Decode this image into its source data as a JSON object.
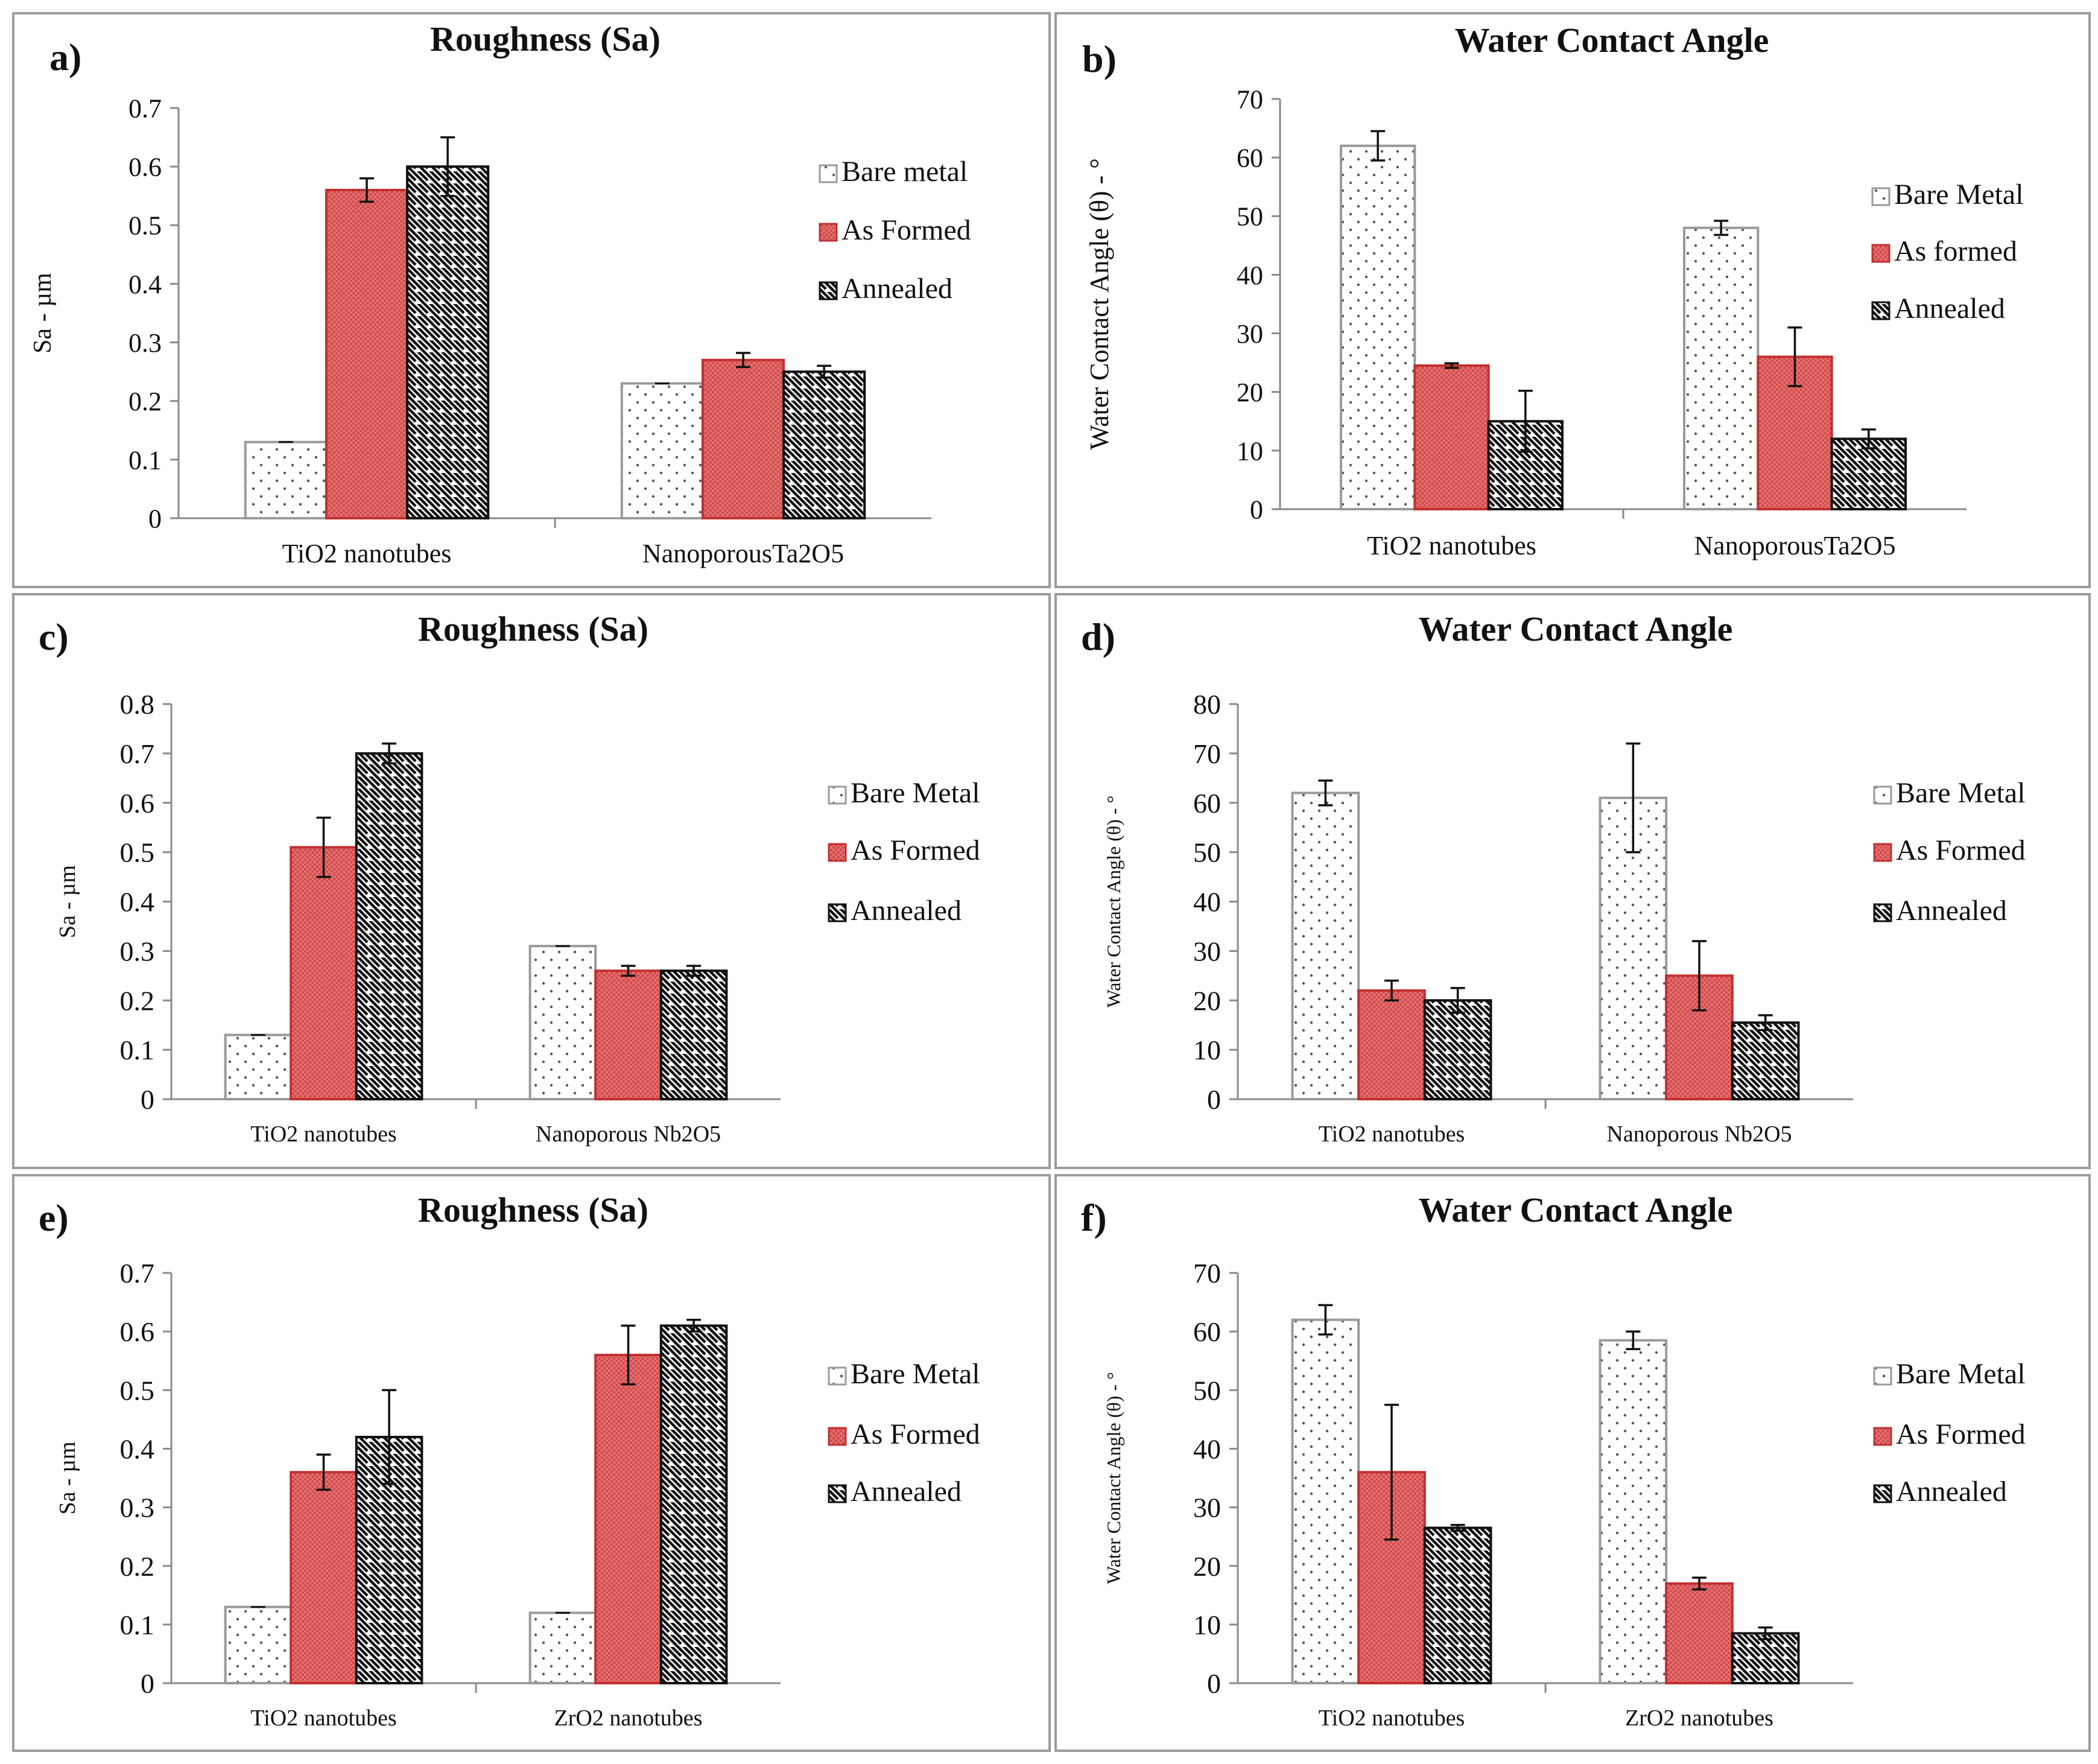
{
  "figure": {
    "colors": {
      "bare": "#ffffff",
      "formed": "#e06060",
      "formed_hatch": "#c03a3a",
      "annealed": "#ffffff",
      "axis": "#8a8a8a"
    }
  },
  "chart_data": [
    {
      "id": "a",
      "panel_label": "a)",
      "type": "bar",
      "title": "Roughness (Sa)",
      "ylabel": "Sa - µm",
      "xlabel": "",
      "ylim": [
        0,
        0.7
      ],
      "yticks": [
        "0",
        "0.1",
        "0.2",
        "0.3",
        "0.4",
        "0.5",
        "0.6",
        "0.7"
      ],
      "categories": [
        "TiO2 nanotubes",
        "NanoporousTa2O5"
      ],
      "series": [
        {
          "name": "Bare metal",
          "pattern": "bare",
          "values": [
            0.13,
            0.23
          ],
          "errors": [
            0,
            0
          ]
        },
        {
          "name": "As Formed",
          "pattern": "formed",
          "values": [
            0.56,
            0.27
          ],
          "errors": [
            0.02,
            0.012
          ]
        },
        {
          "name": "Annealed",
          "pattern": "annealed",
          "values": [
            0.6,
            0.25
          ],
          "errors": [
            0.05,
            0.01
          ]
        }
      ]
    },
    {
      "id": "b",
      "panel_label": "b)",
      "type": "bar",
      "title": "Water Contact Angle",
      "ylabel": "Water Contact Angle (θ) - °",
      "xlabel": "",
      "ylim": [
        0,
        70
      ],
      "yticks": [
        "0",
        "10",
        "20",
        "30",
        "40",
        "50",
        "60",
        "70"
      ],
      "categories": [
        "TiO2 nanotubes",
        "NanoporousTa2O5"
      ],
      "series": [
        {
          "name": "Bare Metal",
          "pattern": "bare",
          "values": [
            62,
            48
          ],
          "errors": [
            2.5,
            1.2
          ]
        },
        {
          "name": "As formed",
          "pattern": "formed",
          "values": [
            24.5,
            26
          ],
          "errors": [
            0.4,
            5
          ]
        },
        {
          "name": "Annealed",
          "pattern": "annealed",
          "values": [
            15,
            12
          ],
          "errors": [
            5.2,
            1.6
          ]
        }
      ]
    },
    {
      "id": "c",
      "panel_label": "c)",
      "type": "bar",
      "title": "Roughness (Sa)",
      "ylabel": "Sa - µm",
      "xlabel": "",
      "ylim": [
        0,
        0.8
      ],
      "yticks": [
        "0",
        "0.1",
        "0.2",
        "0.3",
        "0.4",
        "0.5",
        "0.6",
        "0.7",
        "0.8"
      ],
      "categories": [
        "TiO2 nanotubes",
        "Nanoporous Nb2O5"
      ],
      "series": [
        {
          "name": "Bare Metal",
          "pattern": "bare",
          "values": [
            0.13,
            0.31
          ],
          "errors": [
            0,
            0
          ]
        },
        {
          "name": "As Formed",
          "pattern": "formed",
          "values": [
            0.51,
            0.26
          ],
          "errors": [
            0.06,
            0.01
          ]
        },
        {
          "name": "Annealed",
          "pattern": "annealed",
          "values": [
            0.7,
            0.26
          ],
          "errors": [
            0.02,
            0.01
          ]
        }
      ]
    },
    {
      "id": "d",
      "panel_label": "d)",
      "type": "bar",
      "title": "Water Contact Angle",
      "ylabel": "Water Contact Angle (θ) - °",
      "xlabel": "",
      "ylim": [
        0,
        80
      ],
      "yticks": [
        "0",
        "10",
        "20",
        "30",
        "40",
        "50",
        "60",
        "70",
        "80"
      ],
      "categories": [
        "TiO2 nanotubes",
        "Nanoporous Nb2O5"
      ],
      "series": [
        {
          "name": "Bare Metal",
          "pattern": "bare",
          "values": [
            62,
            61
          ],
          "errors": [
            2.5,
            11
          ]
        },
        {
          "name": "As Formed",
          "pattern": "formed",
          "values": [
            22,
            25
          ],
          "errors": [
            2,
            7
          ]
        },
        {
          "name": "Annealed",
          "pattern": "annealed",
          "values": [
            20,
            15.5
          ],
          "errors": [
            2.5,
            1.5
          ]
        }
      ]
    },
    {
      "id": "e",
      "panel_label": "e)",
      "type": "bar",
      "title": "Roughness (Sa)",
      "ylabel": "Sa - µm",
      "xlabel": "",
      "ylim": [
        0,
        0.7
      ],
      "yticks": [
        "0",
        "0.1",
        "0.2",
        "0.3",
        "0.4",
        "0.5",
        "0.6",
        "0.7"
      ],
      "categories": [
        "TiO2 nanotubes",
        "ZrO2 nanotubes"
      ],
      "series": [
        {
          "name": "Bare Metal",
          "pattern": "bare",
          "values": [
            0.13,
            0.12
          ],
          "errors": [
            0,
            0
          ]
        },
        {
          "name": "As Formed",
          "pattern": "formed",
          "values": [
            0.36,
            0.56
          ],
          "errors": [
            0.03,
            0.05
          ]
        },
        {
          "name": "Annealed",
          "pattern": "annealed",
          "values": [
            0.42,
            0.61
          ],
          "errors": [
            0.08,
            0.01
          ]
        }
      ]
    },
    {
      "id": "f",
      "panel_label": "f)",
      "type": "bar",
      "title": "Water Contact Angle",
      "ylabel": "Water Contact Angle (θ) - °",
      "xlabel": "",
      "ylim": [
        0,
        70
      ],
      "yticks": [
        "0",
        "10",
        "20",
        "30",
        "40",
        "50",
        "60",
        "70"
      ],
      "categories": [
        "TiO2 nanotubes",
        "ZrO2 nanotubes"
      ],
      "series": [
        {
          "name": "Bare Metal",
          "pattern": "bare",
          "values": [
            62,
            58.5
          ],
          "errors": [
            2.5,
            1.5
          ]
        },
        {
          "name": "As Formed",
          "pattern": "formed",
          "values": [
            36,
            17
          ],
          "errors": [
            11.5,
            1
          ]
        },
        {
          "name": "Annealed",
          "pattern": "annealed",
          "values": [
            26.5,
            8.5
          ],
          "errors": [
            0.5,
            1
          ]
        }
      ]
    }
  ]
}
